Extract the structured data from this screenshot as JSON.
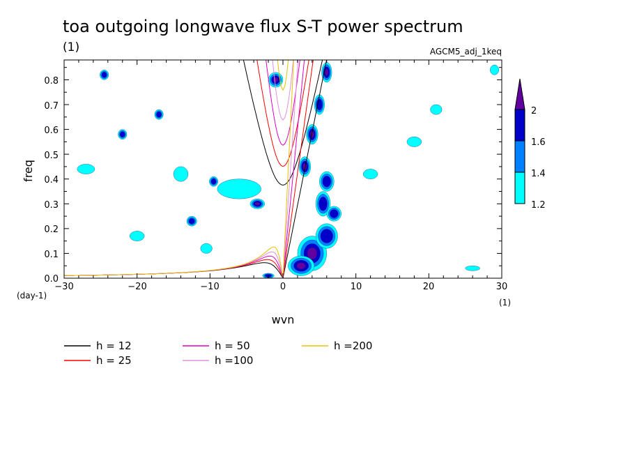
{
  "chart_data": {
    "type": "heatmap",
    "title": "toa outgoing longwave flux S-T power spectrum",
    "subtitle": "(1)",
    "run_label": "AGCM5_adj_1keq",
    "xlabel": "wvn",
    "ylabel": "freq",
    "x_unit": "(1)",
    "y_unit": "(day-1)",
    "xlim": [
      -30,
      30
    ],
    "ylim": [
      0,
      0.88
    ],
    "x_ticks": [
      -30,
      -20,
      -10,
      0,
      10,
      20,
      30
    ],
    "x_tick_labels": [
      "−30",
      "−20",
      "−10",
      "0",
      "10",
      "20",
      "30"
    ],
    "y_ticks": [
      0.0,
      0.1,
      0.2,
      0.3,
      0.4,
      0.5,
      0.6,
      0.7,
      0.8
    ],
    "y_tick_labels": [
      "0.0",
      "0.1",
      "0.2",
      "0.3",
      "0.4",
      "0.5",
      "0.6",
      "0.7",
      "0.8"
    ],
    "colorbar": {
      "levels": [
        1.2,
        1.4,
        1.6,
        2
      ],
      "labels": [
        "1.2",
        "1.4",
        "1.6",
        "2"
      ],
      "colors": [
        "#00ffff",
        "#0080ff",
        "#0000c8",
        "#6000a0"
      ]
    },
    "dispersion_curves": [
      {
        "name": "h = 12",
        "h": 12,
        "color": "#000000"
      },
      {
        "name": "h = 25",
        "h": 25,
        "color": "#ff0000"
      },
      {
        "name": "h = 50",
        "h": 50,
        "color": "#e000c0"
      },
      {
        "name": "h =100",
        "h": 100,
        "color": "#e090e0"
      },
      {
        "name": "h =200",
        "h": 200,
        "color": "#e8c000"
      }
    ],
    "power_regions": [
      {
        "k": 4.0,
        "f": 0.1,
        "rk": 2.0,
        "rf": 0.07,
        "lvl": 4
      },
      {
        "k": 2.5,
        "f": 0.05,
        "rk": 1.8,
        "rf": 0.04,
        "lvl": 4
      },
      {
        "k": 6.0,
        "f": 0.17,
        "rk": 1.5,
        "rf": 0.05,
        "lvl": 3
      },
      {
        "k": 5.5,
        "f": 0.3,
        "rk": 1.0,
        "rf": 0.05,
        "lvl": 3
      },
      {
        "k": 6.0,
        "f": 0.39,
        "rk": 1.0,
        "rf": 0.04,
        "lvl": 3
      },
      {
        "k": 3.0,
        "f": 0.45,
        "rk": 0.8,
        "rf": 0.04,
        "lvl": 4
      },
      {
        "k": 4.0,
        "f": 0.58,
        "rk": 0.8,
        "rf": 0.04,
        "lvl": 4
      },
      {
        "k": 5.0,
        "f": 0.7,
        "rk": 0.7,
        "rf": 0.04,
        "lvl": 3
      },
      {
        "k": 6.0,
        "f": 0.83,
        "rk": 0.7,
        "rf": 0.04,
        "lvl": 4
      },
      {
        "k": -1.0,
        "f": 0.8,
        "rk": 1.0,
        "rf": 0.03,
        "lvl": 4
      },
      {
        "k": -3.5,
        "f": 0.3,
        "rk": 1.0,
        "rf": 0.02,
        "lvl": 4
      },
      {
        "k": -9.5,
        "f": 0.39,
        "rk": 0.6,
        "rf": 0.02,
        "lvl": 3
      },
      {
        "k": -12.5,
        "f": 0.23,
        "rk": 0.7,
        "rf": 0.02,
        "lvl": 3
      },
      {
        "k": -24.5,
        "f": 0.82,
        "rk": 0.6,
        "rf": 0.02,
        "lvl": 3
      },
      {
        "k": -22.0,
        "f": 0.58,
        "rk": 0.6,
        "rf": 0.02,
        "lvl": 3
      },
      {
        "k": -17.0,
        "f": 0.66,
        "rk": 0.6,
        "rf": 0.02,
        "lvl": 3
      },
      {
        "k": 7.0,
        "f": 0.26,
        "rk": 1.0,
        "rf": 0.03,
        "lvl": 3
      },
      {
        "k": -2.0,
        "f": 0.01,
        "rk": 0.8,
        "rf": 0.01,
        "lvl": 3
      },
      {
        "k": -14.0,
        "f": 0.42,
        "rk": 1.0,
        "rf": 0.03,
        "lvl": 1
      },
      {
        "k": -27.0,
        "f": 0.44,
        "rk": 1.2,
        "rf": 0.02,
        "lvl": 1
      },
      {
        "k": -20.0,
        "f": 0.17,
        "rk": 1.0,
        "rf": 0.02,
        "lvl": 1
      },
      {
        "k": 18.0,
        "f": 0.55,
        "rk": 1.0,
        "rf": 0.02,
        "lvl": 1
      },
      {
        "k": 21.0,
        "f": 0.68,
        "rk": 0.8,
        "rf": 0.02,
        "lvl": 1
      },
      {
        "k": 26.0,
        "f": 0.04,
        "rk": 1.0,
        "rf": 0.01,
        "lvl": 1
      },
      {
        "k": 29.0,
        "f": 0.84,
        "rk": 0.6,
        "rf": 0.02,
        "lvl": 1
      },
      {
        "k": -6.0,
        "f": 0.36,
        "rk": 3.0,
        "rf": 0.04,
        "lvl": 1
      },
      {
        "k": 12.0,
        "f": 0.42,
        "rk": 1.0,
        "rf": 0.02,
        "lvl": 1
      },
      {
        "k": -10.5,
        "f": 0.12,
        "rk": 0.8,
        "rf": 0.02,
        "lvl": 1
      }
    ]
  }
}
